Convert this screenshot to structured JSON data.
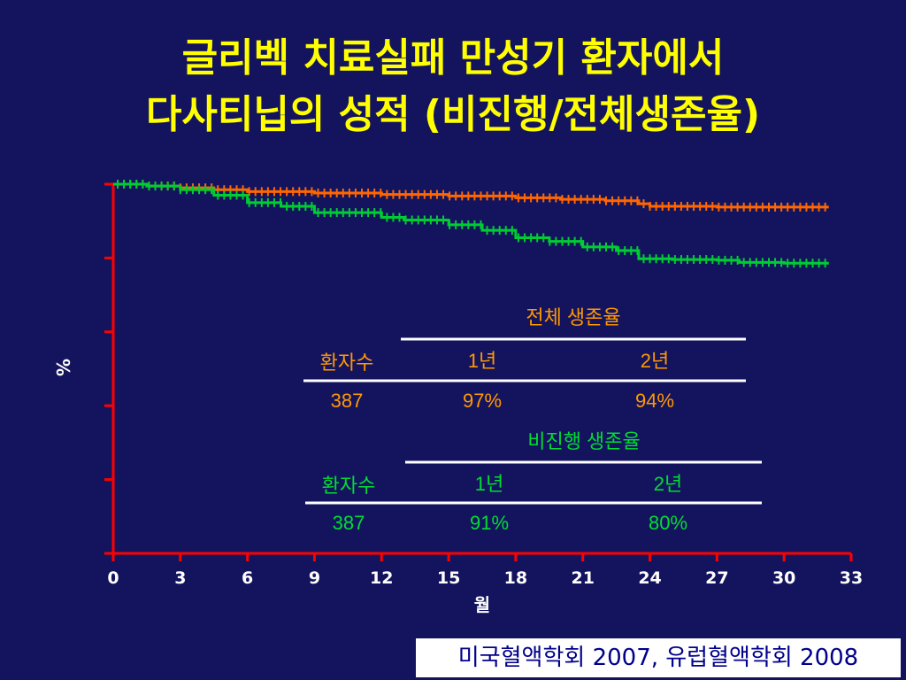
{
  "title": {
    "line1": "글리벡 치료실패 만성기 환자에서",
    "line2": "다사티닙의 성적 (비진행/전체생존율)"
  },
  "chart_data": {
    "type": "line",
    "xlabel": "월",
    "ylabel": "%",
    "xlim": [
      0,
      33
    ],
    "ylim": [
      0,
      100
    ],
    "xticks": [
      "0",
      "3",
      "6",
      "9",
      "12",
      "15",
      "18",
      "21",
      "24",
      "27",
      "30",
      "33"
    ],
    "colors": {
      "axis": "#ff0000",
      "overall": "#ff6600",
      "pfs": "#00cc33",
      "text": "#ffffff",
      "table_orange": "#ff9900",
      "table_green": "#00dd33"
    },
    "series": [
      {
        "key": "overall",
        "values": [
          [
            0,
            100
          ],
          [
            1.5,
            99.5
          ],
          [
            3,
            99
          ],
          [
            4.5,
            98.5
          ],
          [
            6,
            98
          ],
          [
            9,
            97.6
          ],
          [
            12,
            97.2
          ],
          [
            15,
            96.8
          ],
          [
            18,
            96.3
          ],
          [
            20,
            95.9
          ],
          [
            22,
            95.5
          ],
          [
            23.5,
            94.7
          ],
          [
            24,
            94.0
          ],
          [
            27,
            93.8
          ],
          [
            30,
            93.8
          ],
          [
            32,
            93.8
          ]
        ]
      },
      {
        "key": "pfs",
        "values": [
          [
            0,
            100
          ],
          [
            1.5,
            99.5
          ],
          [
            3,
            98.5
          ],
          [
            4.5,
            97
          ],
          [
            6,
            95
          ],
          [
            7.5,
            94
          ],
          [
            9,
            92.3
          ],
          [
            12,
            91
          ],
          [
            13,
            90.3
          ],
          [
            15,
            89
          ],
          [
            16.5,
            87.5
          ],
          [
            18,
            85.5
          ],
          [
            19.5,
            84.5
          ],
          [
            21,
            83
          ],
          [
            22.5,
            82
          ],
          [
            23.5,
            79.8
          ],
          [
            25,
            79.6
          ],
          [
            27,
            79.4
          ],
          [
            28,
            78.8
          ],
          [
            30,
            78.6
          ],
          [
            32,
            78.6
          ]
        ]
      }
    ],
    "tables": [
      {
        "heading": "전체 생존율",
        "patients_label": "환자수",
        "col1": "1년",
        "col2": "2년",
        "patients": "387",
        "val1": "97%",
        "val2": "94%"
      },
      {
        "heading": "비진행 생존율",
        "patients_label": "환자수",
        "col1": "1년",
        "col2": "2년",
        "patients": "387",
        "val1": "91%",
        "val2": "80%"
      }
    ]
  },
  "source": "미국혈액학회 2007, 유럽혈액학회 2008"
}
